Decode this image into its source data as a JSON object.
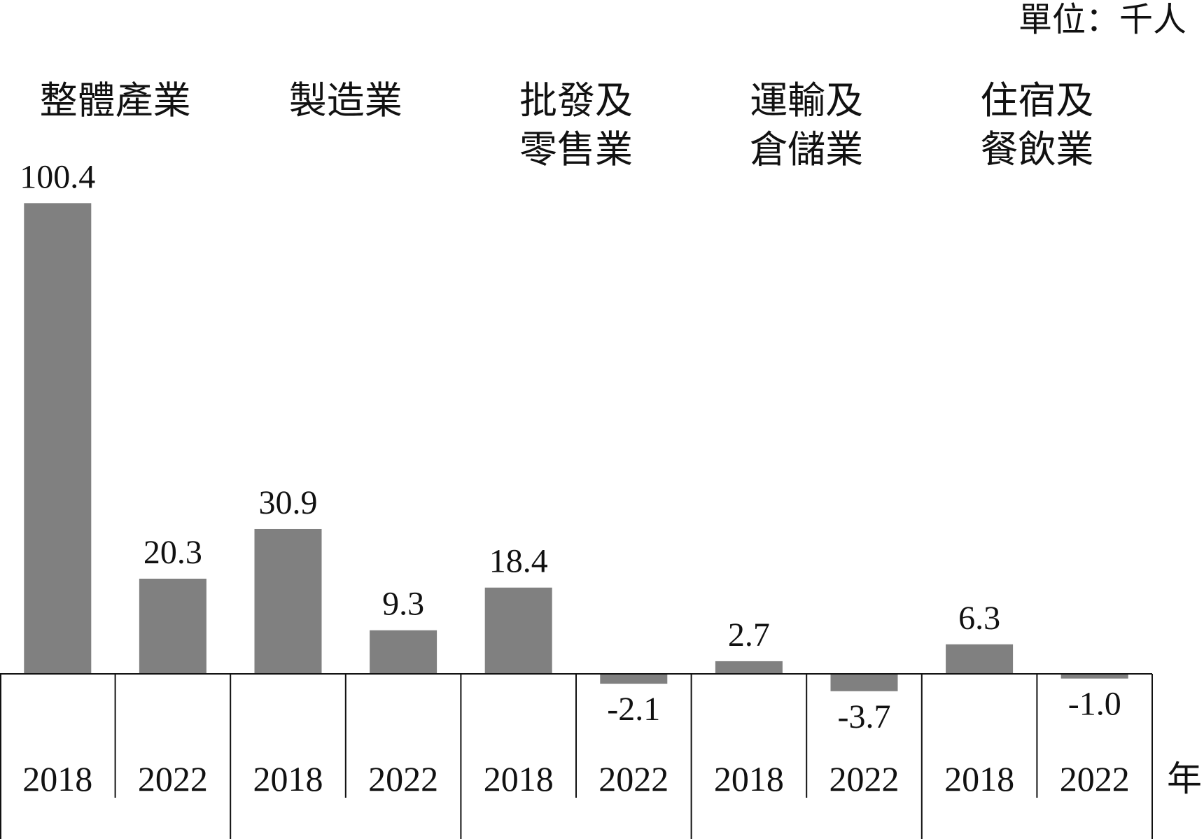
{
  "unit_label": "單位：千人",
  "x_unit_label": "年",
  "colors": {
    "bar": "#808080",
    "axis": "#111111",
    "text": "#111111"
  },
  "chart_data": {
    "type": "bar",
    "title": "",
    "xlabel": "年",
    "ylabel": "單位：千人",
    "groups": [
      {
        "name": [
          "整體產業"
        ],
        "years": [
          "2018",
          "2022"
        ],
        "values": [
          100.4,
          20.3
        ],
        "value_labels": [
          "100.4",
          "20.3"
        ]
      },
      {
        "name": [
          "製造業"
        ],
        "years": [
          "2018",
          "2022"
        ],
        "values": [
          30.9,
          9.3
        ],
        "value_labels": [
          "30.9",
          "9.3"
        ]
      },
      {
        "name": [
          "批發及",
          "零售業"
        ],
        "years": [
          "2018",
          "2022"
        ],
        "values": [
          18.4,
          -2.1
        ],
        "value_labels": [
          "18.4",
          "-2.1"
        ]
      },
      {
        "name": [
          "運輸及",
          "倉儲業"
        ],
        "years": [
          "2018",
          "2022"
        ],
        "values": [
          2.7,
          -3.7
        ],
        "value_labels": [
          "2.7",
          "-3.7"
        ]
      },
      {
        "name": [
          "住宿及",
          "餐飲業"
        ],
        "years": [
          "2018",
          "2022"
        ],
        "values": [
          6.3,
          -1.0
        ],
        "value_labels": [
          "6.3",
          "-1.0"
        ]
      }
    ],
    "legend": "none",
    "grid": false
  }
}
